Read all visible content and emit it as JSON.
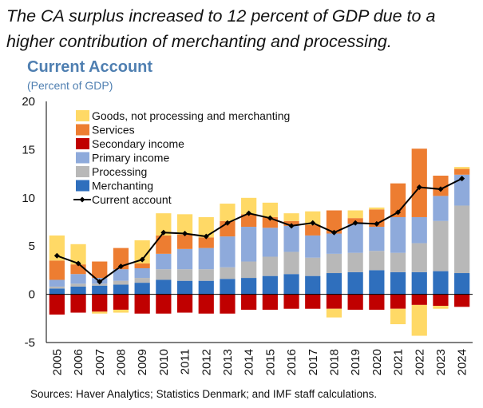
{
  "headline": "The CA surplus increased to 12 percent of GDP due to a higher contribution of merchanting and processing.",
  "source": "Sources: Haver Analytics; Statistics Denmark; and IMF staff calculations.",
  "chart_data": {
    "type": "bar",
    "stacked": true,
    "title": "Current Account",
    "subtitle": "(Percent of GDP)",
    "xlabel": "",
    "ylabel": "",
    "ylim": [
      -5,
      20
    ],
    "yticks": [
      -5,
      0,
      5,
      10,
      15,
      20
    ],
    "legend_position": "top-left",
    "categories": [
      "2005",
      "2006",
      "2007",
      "2008",
      "2009",
      "2010",
      "2011",
      "2012",
      "2013",
      "2014",
      "2015",
      "2016",
      "2017",
      "2018",
      "2019",
      "2020",
      "2021",
      "2022",
      "2023",
      "2024"
    ],
    "series": [
      {
        "name": "Merchanting",
        "color": "#2f6fbd",
        "values": [
          0.6,
          0.8,
          0.9,
          1.0,
          1.2,
          1.5,
          1.4,
          1.4,
          1.6,
          1.7,
          1.9,
          2.1,
          1.9,
          2.2,
          2.3,
          2.5,
          2.3,
          2.3,
          2.4,
          2.2
        ]
      },
      {
        "name": "Processing",
        "color": "#b8b8b8",
        "values": [
          0.2,
          0.3,
          0.2,
          0.4,
          0.5,
          1.1,
          1.2,
          1.2,
          1.2,
          1.7,
          2.0,
          2.3,
          1.9,
          2.0,
          2.0,
          2.0,
          2.0,
          3.0,
          5.2,
          7.0
        ]
      },
      {
        "name": "Primary income",
        "color": "#8eaadb",
        "values": [
          0.7,
          1.0,
          0.6,
          1.2,
          1.0,
          1.6,
          2.1,
          2.2,
          3.2,
          3.6,
          3.0,
          2.7,
          2.3,
          2.1,
          3.0,
          2.5,
          3.7,
          2.7,
          2.6,
          3.2
        ]
      },
      {
        "name": "Services",
        "color": "#ed7d31",
        "values": [
          2.0,
          1.0,
          1.7,
          2.2,
          0.5,
          1.9,
          1.5,
          1.1,
          1.6,
          1.3,
          1.1,
          0.5,
          1.1,
          2.4,
          0.6,
          1.8,
          3.5,
          7.1,
          2.1,
          0.6
        ]
      },
      {
        "name": "Goods, not processing and merchanting",
        "color": "#ffd966",
        "values": [
          2.6,
          2.1,
          0.0,
          0.0,
          2.4,
          2.3,
          2.1,
          2.1,
          1.8,
          1.7,
          1.5,
          0.8,
          1.4,
          0.0,
          0.8,
          0.2,
          0.0,
          -3.2,
          -0.3,
          0.2
        ]
      },
      {
        "name": "Secondary income",
        "color": "#c00000",
        "values": [
          -2.1,
          -1.9,
          -1.8,
          -1.6,
          -2.0,
          -2.0,
          -1.9,
          -2.0,
          -2.0,
          -1.6,
          -1.6,
          -1.5,
          -1.5,
          -1.5,
          -1.6,
          -1.6,
          -1.5,
          -1.1,
          -1.2,
          -1.3
        ]
      }
    ],
    "extra_negative": {
      "Goods, not processing and merchanting": [
        0,
        0,
        -0.2,
        -0.3,
        0,
        0,
        0,
        0,
        0,
        0,
        0,
        0,
        0,
        -0.9,
        0,
        0,
        -1.6,
        0,
        0,
        0
      ]
    },
    "line_series": {
      "name": "Current account",
      "color": "#000000",
      "values": [
        4.0,
        3.2,
        1.3,
        2.9,
        3.6,
        6.4,
        6.3,
        6.0,
        7.4,
        8.4,
        7.9,
        7.1,
        7.4,
        6.4,
        7.4,
        7.3,
        8.5,
        11.1,
        10.9,
        12.0
      ]
    },
    "legend_order": [
      "Goods, not processing and merchanting",
      "Services",
      "Secondary income",
      "Primary income",
      "Processing",
      "Merchanting",
      "Current account"
    ]
  }
}
